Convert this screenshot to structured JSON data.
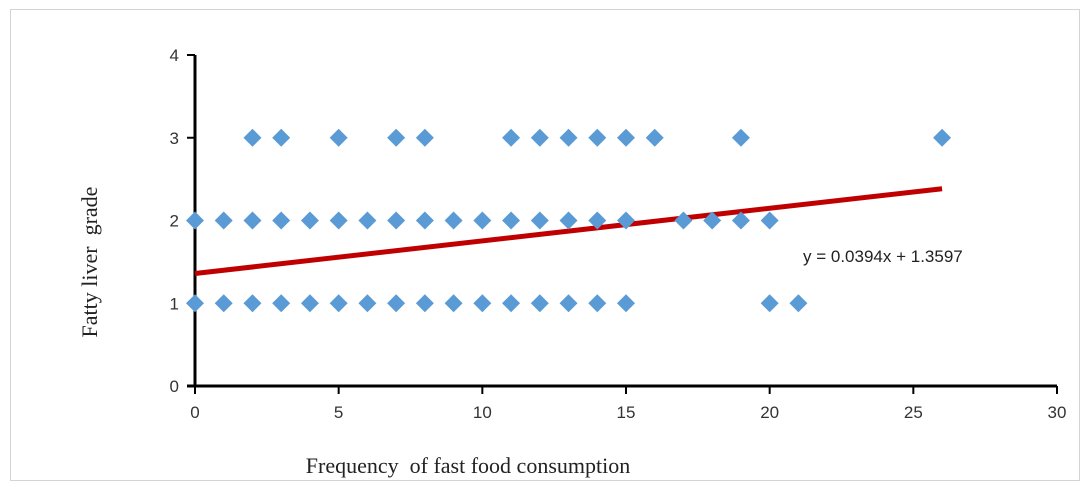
{
  "chart_data": {
    "type": "scatter",
    "xlabel": "Frequency  of fast food consumption",
    "ylabel": "Fatty liver  grade",
    "xlim": [
      0,
      30
    ],
    "ylim": [
      0,
      4
    ],
    "x_ticks": [
      "0",
      "5",
      "10",
      "15",
      "20",
      "25",
      "30"
    ],
    "y_ticks": [
      "0",
      "1",
      "2",
      "3",
      "4"
    ],
    "grid": false,
    "marker_color": "#5B9BD5",
    "points": [
      {
        "x": 2,
        "y": 3
      },
      {
        "x": 3,
        "y": 3
      },
      {
        "x": 5,
        "y": 3
      },
      {
        "x": 7,
        "y": 3
      },
      {
        "x": 8,
        "y": 3
      },
      {
        "x": 11,
        "y": 3
      },
      {
        "x": 12,
        "y": 3
      },
      {
        "x": 13,
        "y": 3
      },
      {
        "x": 14,
        "y": 3
      },
      {
        "x": 15,
        "y": 3
      },
      {
        "x": 16,
        "y": 3
      },
      {
        "x": 19,
        "y": 3
      },
      {
        "x": 26,
        "y": 3
      },
      {
        "x": 0,
        "y": 2
      },
      {
        "x": 1,
        "y": 2
      },
      {
        "x": 2,
        "y": 2
      },
      {
        "x": 3,
        "y": 2
      },
      {
        "x": 4,
        "y": 2
      },
      {
        "x": 5,
        "y": 2
      },
      {
        "x": 6,
        "y": 2
      },
      {
        "x": 7,
        "y": 2
      },
      {
        "x": 8,
        "y": 2
      },
      {
        "x": 9,
        "y": 2
      },
      {
        "x": 10,
        "y": 2
      },
      {
        "x": 11,
        "y": 2
      },
      {
        "x": 12,
        "y": 2
      },
      {
        "x": 13,
        "y": 2
      },
      {
        "x": 14,
        "y": 2
      },
      {
        "x": 15,
        "y": 2
      },
      {
        "x": 17,
        "y": 2
      },
      {
        "x": 18,
        "y": 2
      },
      {
        "x": 19,
        "y": 2
      },
      {
        "x": 20,
        "y": 2
      },
      {
        "x": 0,
        "y": 1
      },
      {
        "x": 1,
        "y": 1
      },
      {
        "x": 2,
        "y": 1
      },
      {
        "x": 3,
        "y": 1
      },
      {
        "x": 4,
        "y": 1
      },
      {
        "x": 5,
        "y": 1
      },
      {
        "x": 6,
        "y": 1
      },
      {
        "x": 7,
        "y": 1
      },
      {
        "x": 8,
        "y": 1
      },
      {
        "x": 9,
        "y": 1
      },
      {
        "x": 10,
        "y": 1
      },
      {
        "x": 11,
        "y": 1
      },
      {
        "x": 12,
        "y": 1
      },
      {
        "x": 13,
        "y": 1
      },
      {
        "x": 14,
        "y": 1
      },
      {
        "x": 15,
        "y": 1
      },
      {
        "x": 20,
        "y": 1
      },
      {
        "x": 21,
        "y": 1
      }
    ],
    "trendline": {
      "slope": 0.0394,
      "intercept": 1.3597,
      "x_range": [
        0,
        26
      ],
      "color": "#C00000",
      "equation": "y = 0.0394x + 1.3597"
    }
  }
}
